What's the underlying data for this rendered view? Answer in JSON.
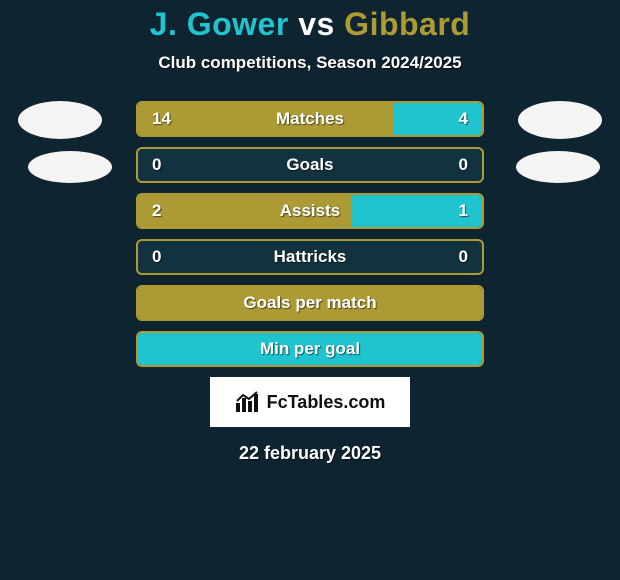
{
  "colors": {
    "bg": "#0e2430",
    "text": "#ffffff",
    "player1": "#1fc4cf",
    "player2": "#ac9a34",
    "row_border": "#ac9a34",
    "row_bg": "#13323f",
    "avatar": "#f4f4f4",
    "brand_bg": "#ffffff",
    "brand_text": "#111111"
  },
  "header": {
    "player1": "J. Gower",
    "vs": "vs",
    "player2": "Gibbard",
    "title_fontsize": 32,
    "subtitle": "Club competitions, Season 2024/2025",
    "subtitle_fontsize": 17
  },
  "stats": {
    "label_fontsize": 17,
    "value_fontsize": 17,
    "rows": [
      {
        "label": "Matches",
        "left": "14",
        "right": "4",
        "left_pct": 74,
        "right_pct": 26,
        "show_vals": true
      },
      {
        "label": "Goals",
        "left": "0",
        "right": "0",
        "left_pct": 0,
        "right_pct": 0,
        "show_vals": true
      },
      {
        "label": "Assists",
        "left": "2",
        "right": "1",
        "left_pct": 62,
        "right_pct": 38,
        "show_vals": true
      },
      {
        "label": "Hattricks",
        "left": "0",
        "right": "0",
        "left_pct": 0,
        "right_pct": 0,
        "show_vals": true
      },
      {
        "label": "Goals per match",
        "left": "",
        "right": "",
        "left_pct": 100,
        "right_pct": 0,
        "show_vals": false
      },
      {
        "label": "Min per goal",
        "left": "",
        "right": "",
        "left_pct": 0,
        "right_pct": 100,
        "show_vals": false
      }
    ]
  },
  "brand": {
    "text": "FcTables.com",
    "fontsize": 18
  },
  "footer": {
    "date": "22 february 2025",
    "fontsize": 18
  }
}
